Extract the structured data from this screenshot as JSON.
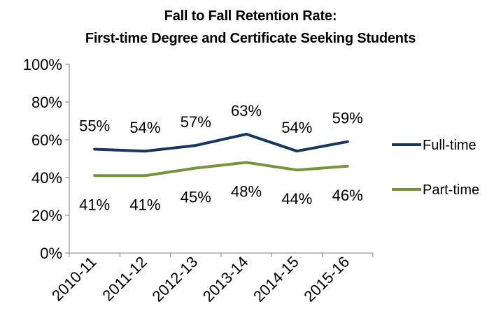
{
  "chart_data": {
    "type": "line",
    "title_lines": [
      "Fall to Fall Retention Rate:",
      "First-time Degree and Certificate Seeking Students"
    ],
    "xlabel": "",
    "ylabel": "",
    "categories": [
      "2010-11",
      "2011-12",
      "2012-13",
      "2013-14",
      "2014-15",
      "2015-16"
    ],
    "ylim": [
      0,
      100
    ],
    "yticks": [
      "0%",
      "20%",
      "40%",
      "60%",
      "80%",
      "100%"
    ],
    "grid": false,
    "legend_position": "right",
    "series": [
      {
        "name": "Full-time",
        "color": "#17375e",
        "values": [
          55,
          54,
          57,
          63,
          54,
          59
        ],
        "labels": [
          "55%",
          "54%",
          "57%",
          "63%",
          "54%",
          "59%"
        ]
      },
      {
        "name": "Part-time",
        "color": "#77933c",
        "values": [
          41,
          41,
          45,
          48,
          44,
          46
        ],
        "labels": [
          "41%",
          "41%",
          "45%",
          "48%",
          "44%",
          "46%"
        ]
      }
    ]
  }
}
